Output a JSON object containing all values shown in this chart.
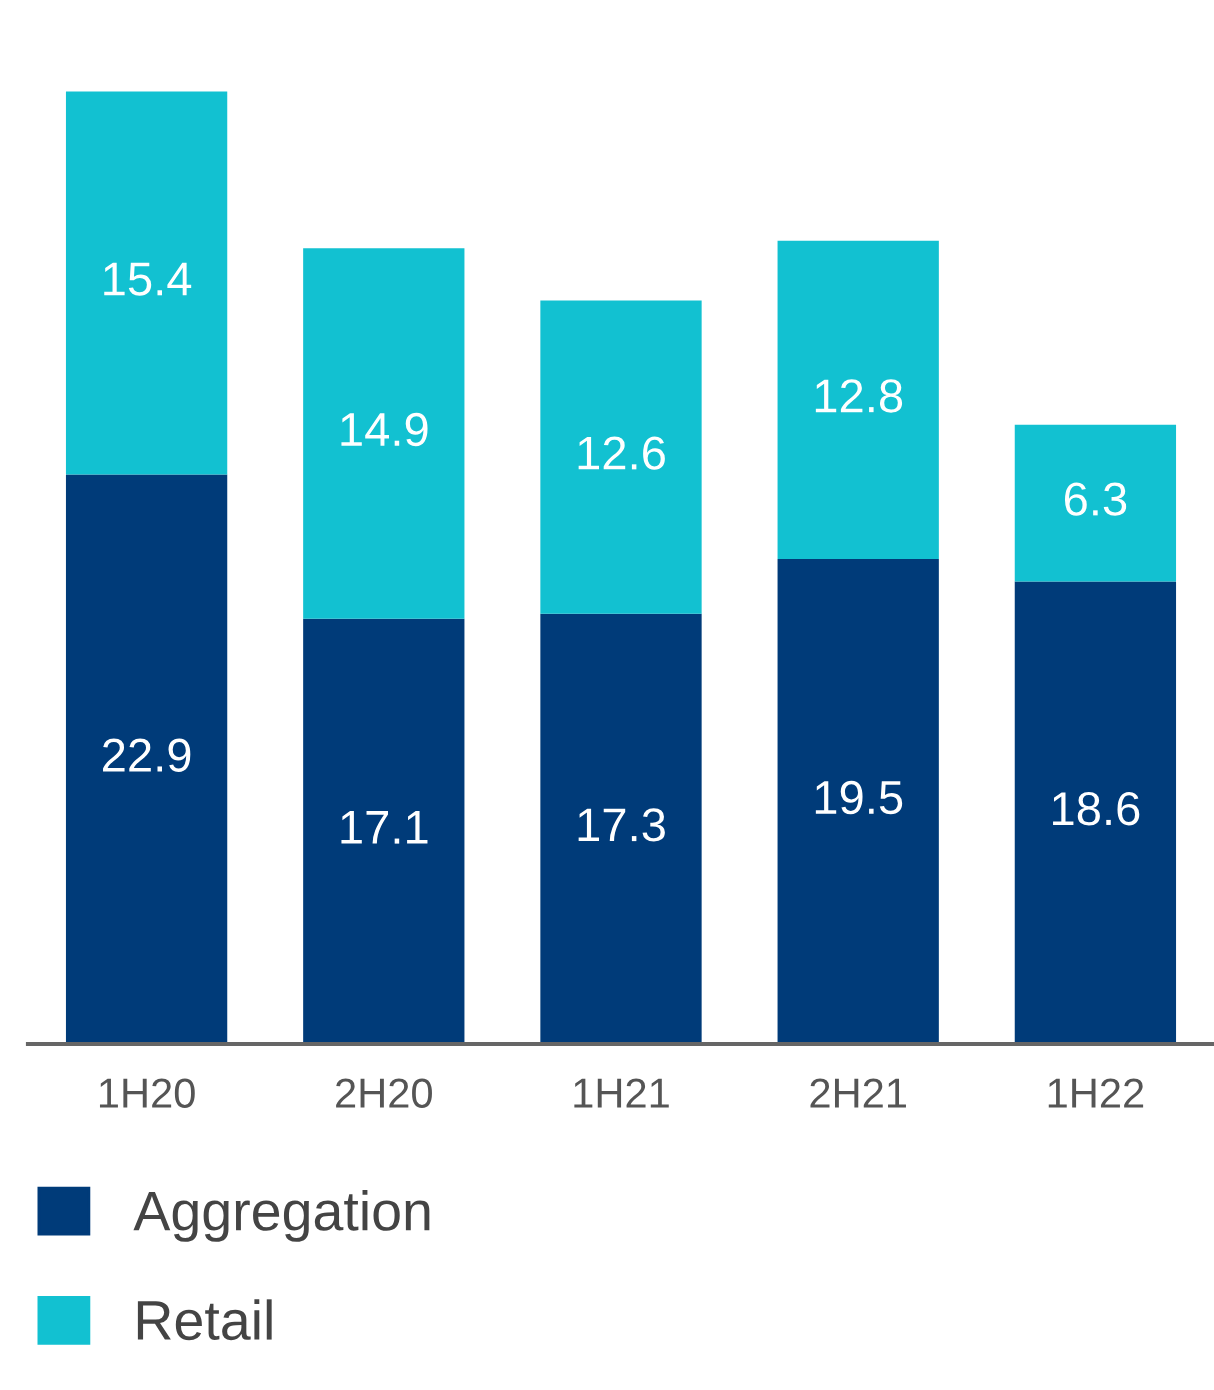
{
  "chart_data": {
    "type": "bar",
    "stacked": true,
    "categories": [
      "1H20",
      "2H20",
      "1H21",
      "2H21",
      "1H22"
    ],
    "series": [
      {
        "name": "Aggregation",
        "color": "#003b79",
        "values": [
          22.9,
          17.1,
          17.3,
          19.5,
          18.6
        ]
      },
      {
        "name": "Retail",
        "color": "#12c1d1",
        "values": [
          15.4,
          14.9,
          12.6,
          12.8,
          6.3
        ]
      }
    ],
    "data_labels": true,
    "legend": "bottom left",
    "grid": false
  }
}
